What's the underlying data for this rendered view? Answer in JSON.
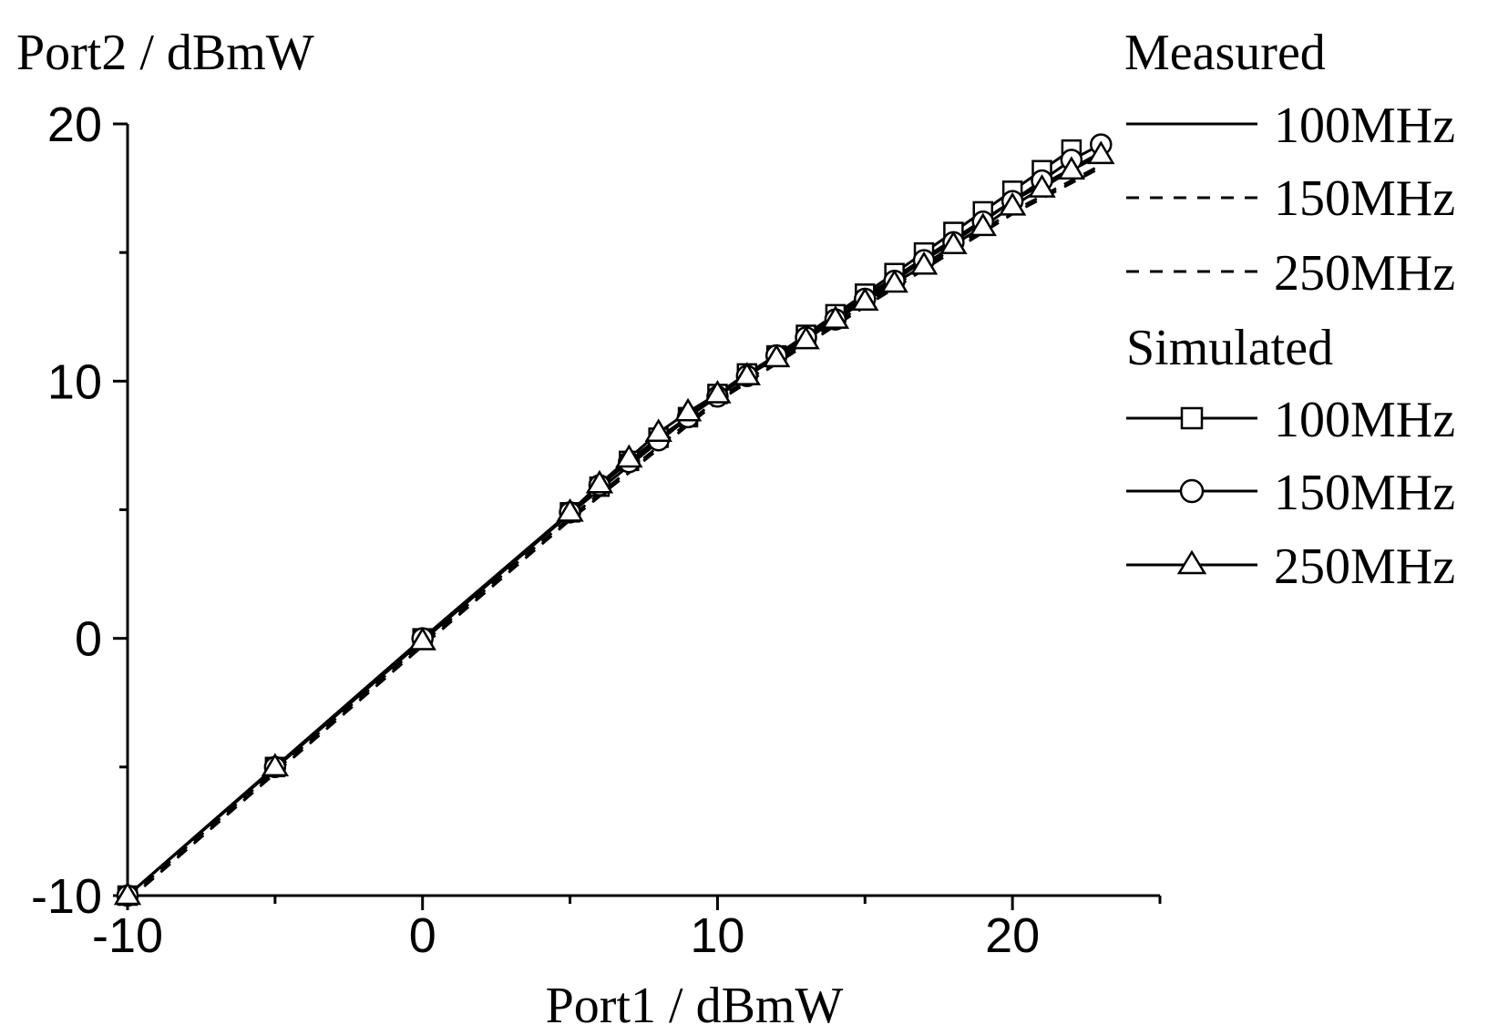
{
  "chart_data": {
    "type": "line",
    "title": "",
    "xlabel": "Port1 / dBmW",
    "ylabel": "Port2 / dBmW",
    "xlim": [
      -10,
      25
    ],
    "ylim": [
      -10,
      20
    ],
    "x_ticks": [
      -10,
      0,
      10,
      20
    ],
    "y_ticks": [
      -10,
      0,
      10,
      20
    ],
    "x_tick_labels": [
      "-10",
      "0",
      "10",
      "20"
    ],
    "y_tick_labels": [
      "-10",
      "0",
      "10",
      "20"
    ],
    "grid": false,
    "legend_position": "top-right",
    "legend": {
      "groups": [
        {
          "title": "Measured",
          "entries": [
            {
              "label": "100MHz",
              "series": "meas_100"
            },
            {
              "label": "150MHz",
              "series": "meas_150"
            },
            {
              "label": "250MHz",
              "series": "meas_250"
            }
          ]
        },
        {
          "title": "Simulated",
          "entries": [
            {
              "label": "100MHz",
              "series": "sim_100"
            },
            {
              "label": "150MHz",
              "series": "sim_150"
            },
            {
              "label": "250MHz",
              "series": "sim_250"
            }
          ]
        }
      ]
    },
    "series": [
      {
        "id": "meas_100",
        "name": "Measured 100MHz",
        "line": "solid",
        "marker": "none",
        "color": "#000000",
        "x": [
          -10,
          -5,
          0,
          5,
          10,
          15,
          20,
          23
        ],
        "y": [
          -10,
          -5.05,
          -0.1,
          4.85,
          9.5,
          13.3,
          17.0,
          18.9
        ]
      },
      {
        "id": "meas_150",
        "name": "Measured 150MHz",
        "line": "dashed",
        "marker": "none",
        "color": "#000000",
        "x": [
          -10,
          -5,
          0,
          5,
          10,
          15,
          20,
          23
        ],
        "y": [
          -10.1,
          -5.15,
          -0.2,
          4.7,
          9.3,
          13.0,
          16.6,
          18.4
        ]
      },
      {
        "id": "meas_250",
        "name": "Measured 250MHz",
        "line": "dashed",
        "marker": "none",
        "color": "#000000",
        "x": [
          -10,
          -5,
          0,
          5,
          10,
          15,
          20,
          23
        ],
        "y": [
          -10.2,
          -5.25,
          -0.3,
          4.6,
          9.2,
          12.9,
          16.5,
          18.3
        ]
      },
      {
        "id": "sim_100",
        "name": "Simulated 100MHz",
        "line": "solid",
        "marker": "square",
        "color": "#000000",
        "x": [
          -10,
          -5,
          0,
          5,
          6,
          7,
          8,
          9,
          10,
          11,
          12,
          13,
          14,
          15,
          16,
          17,
          18,
          19,
          20,
          21,
          22
        ],
        "y": [
          -10,
          -5,
          0,
          4.9,
          5.9,
          6.9,
          7.8,
          8.6,
          9.5,
          10.3,
          11.0,
          11.8,
          12.6,
          13.4,
          14.2,
          15.0,
          15.8,
          16.6,
          17.4,
          18.2,
          19.0
        ]
      },
      {
        "id": "sim_150",
        "name": "Simulated 150MHz",
        "line": "solid",
        "marker": "circle",
        "color": "#000000",
        "x": [
          -10,
          -5,
          0,
          5,
          6,
          7,
          8,
          9,
          10,
          11,
          12,
          13,
          14,
          15,
          16,
          17,
          18,
          19,
          20,
          21,
          22,
          23
        ],
        "y": [
          -10,
          -5,
          0,
          4.9,
          5.95,
          6.85,
          7.7,
          8.6,
          9.4,
          10.2,
          11.0,
          11.7,
          12.4,
          13.2,
          13.9,
          14.7,
          15.4,
          16.2,
          17.0,
          17.8,
          18.6,
          19.2
        ]
      },
      {
        "id": "sim_250",
        "name": "Simulated 250MHz",
        "line": "solid",
        "marker": "triangle",
        "color": "#000000",
        "x": [
          -10,
          -5,
          0,
          5,
          6,
          7,
          8,
          9,
          10,
          11,
          12,
          13,
          14,
          15,
          16,
          17,
          18,
          19,
          20,
          21,
          22,
          23
        ],
        "y": [
          -10,
          -5,
          -0.1,
          4.9,
          6.0,
          7.0,
          8.0,
          8.8,
          9.5,
          10.2,
          10.9,
          11.6,
          12.4,
          13.1,
          13.8,
          14.5,
          15.3,
          16.0,
          16.8,
          17.5,
          18.2,
          18.8
        ]
      }
    ]
  }
}
